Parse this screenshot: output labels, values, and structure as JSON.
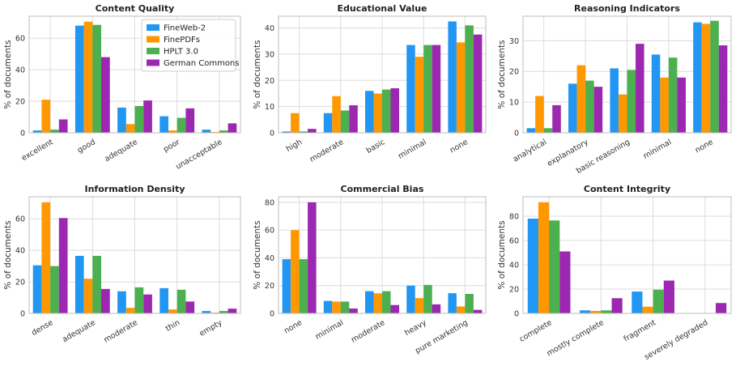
{
  "series": [
    {
      "name": "FineWeb-2",
      "color": "#2196F3"
    },
    {
      "name": "FinePDFs",
      "color": "#FF9800"
    },
    {
      "name": "HPLT 3.0",
      "color": "#4CAF50"
    },
    {
      "name": "German Commons",
      "color": "#9C27B0"
    }
  ],
  "chart_data": [
    {
      "type": "bar",
      "title": "Content Quality",
      "ylabel": "% of documents",
      "categories": [
        "excellent",
        "good",
        "adequate",
        "poor",
        "unacceptable"
      ],
      "yticks": [
        0,
        20,
        40,
        60
      ],
      "ylim": [
        0,
        74
      ],
      "values": [
        [
          1.5,
          68,
          16,
          10.5,
          2
        ],
        [
          21,
          70.5,
          5.5,
          1.5,
          0.5
        ],
        [
          2,
          68.5,
          17,
          9.5,
          1.5
        ],
        [
          8.5,
          48,
          20.5,
          15.5,
          6
        ]
      ]
    },
    {
      "type": "bar",
      "title": "Educational Value",
      "ylabel": "% of documents",
      "categories": [
        "high",
        "moderate",
        "basic",
        "minimal",
        "none"
      ],
      "yticks": [
        0,
        10,
        20,
        30,
        40
      ],
      "ylim": [
        0,
        44.5
      ],
      "values": [
        [
          0.5,
          7.5,
          16,
          33.5,
          42.5
        ],
        [
          7.5,
          14,
          15,
          29,
          34.5
        ],
        [
          0.5,
          8.5,
          16.5,
          33.5,
          41
        ],
        [
          1.5,
          10.5,
          17,
          33.5,
          37.5
        ]
      ]
    },
    {
      "type": "bar",
      "title": "Reasoning Indicators",
      "ylabel": "% of documents",
      "categories": [
        "analytical",
        "explanatory",
        "basic reasoning",
        "minimal",
        "none"
      ],
      "yticks": [
        0,
        10,
        20,
        30
      ],
      "ylim": [
        0,
        38
      ],
      "values": [
        [
          1.5,
          16,
          21,
          25.5,
          36
        ],
        [
          12,
          22,
          12.5,
          18,
          35.5
        ],
        [
          1.5,
          17,
          20.5,
          24.5,
          36.5
        ],
        [
          9,
          15,
          29,
          18,
          28.5
        ]
      ]
    },
    {
      "type": "bar",
      "title": "Information Density",
      "ylabel": "% of documents",
      "categories": [
        "dense",
        "adequate",
        "moderate",
        "thin",
        "empty"
      ],
      "yticks": [
        0,
        20,
        40,
        60
      ],
      "ylim": [
        0,
        74
      ],
      "values": [
        [
          30.5,
          36.5,
          14,
          16,
          1.5
        ],
        [
          70.5,
          22,
          3.5,
          2.5,
          0.5
        ],
        [
          30,
          36.5,
          16.5,
          15,
          1.5
        ],
        [
          60.5,
          15.5,
          12,
          7.5,
          3
        ]
      ]
    },
    {
      "type": "bar",
      "title": "Commercial Bias",
      "ylabel": "% of documents",
      "categories": [
        "none",
        "minimal",
        "moderate",
        "heavy",
        "pure marketing"
      ],
      "yticks": [
        0,
        20,
        40,
        60,
        80
      ],
      "ylim": [
        0,
        84
      ],
      "values": [
        [
          39,
          9,
          16,
          20,
          14.5
        ],
        [
          60,
          8.5,
          14.5,
          11,
          5
        ],
        [
          39,
          8.5,
          16,
          20.5,
          14
        ],
        [
          80,
          3.5,
          6,
          6.5,
          2.5
        ]
      ]
    },
    {
      "type": "bar",
      "title": "Content Integrity",
      "ylabel": "% of documents",
      "categories": [
        "complete",
        "mostly complete",
        "fragment",
        "severely degraded"
      ],
      "yticks": [
        0,
        20,
        40,
        60,
        80
      ],
      "ylim": [
        0,
        96
      ],
      "values": [
        [
          78,
          2.5,
          18,
          0
        ],
        [
          91.5,
          2,
          5.5,
          0
        ],
        [
          76.5,
          2.5,
          19.5,
          0
        ],
        [
          51,
          12.5,
          27,
          8.5
        ]
      ]
    }
  ]
}
